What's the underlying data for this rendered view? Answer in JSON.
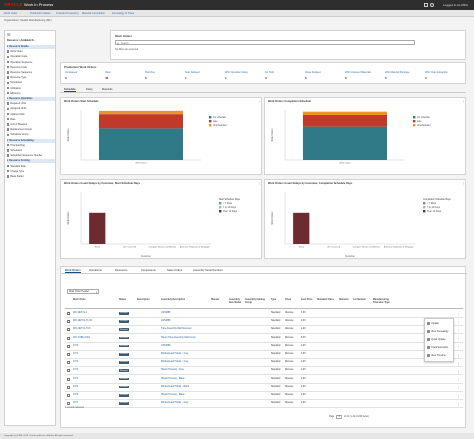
{
  "header": {
    "logo": "ORACLE",
    "product": "Work In Process",
    "user": "Logged In As MFG"
  },
  "breadcrumbs": [
    "Work Order",
    "Production Status",
    "Outside Processing",
    "Material Completion",
    "Genealogy & Trace"
  ],
  "location": "Organization: Seattle Manufacturing (M1)",
  "sidebar": {
    "title": "Resource > Available R...",
    "items": [
      {
        "label": "Resource Details",
        "header": true
      },
      {
        "label": "Work Order",
        "header": false
      },
      {
        "label": "Operation Code",
        "header": false
      },
      {
        "label": "Operation Sequence",
        "header": false
      },
      {
        "label": "Resource Code",
        "header": false
      },
      {
        "label": "Resource Sequence",
        "header": false
      },
      {
        "label": "Resource Type",
        "header": false
      },
      {
        "label": "Scheduled",
        "header": false
      },
      {
        "label": "Utilization",
        "header": false
      },
      {
        "label": "Efficiency",
        "header": false
      },
      {
        "label": "Resource Quantities",
        "header": true
      },
      {
        "label": "Required Units",
        "header": false
      },
      {
        "label": "Assigned Units",
        "header": false
      },
      {
        "label": "Applied Units",
        "header": false
      },
      {
        "label": "Rate",
        "header": false
      },
      {
        "label": "Unit of Measure",
        "header": false
      },
      {
        "label": "Replacement Group",
        "header": false
      },
      {
        "label": "Substitute Group",
        "header": false
      },
      {
        "label": "Resource Scheduling",
        "header": true
      },
      {
        "label": "Principal Flag",
        "header": false
      },
      {
        "label": "Scheduled",
        "header": false
      },
      {
        "label": "Scheduled Sequence Number",
        "header": false
      },
      {
        "label": "Resource Costing",
        "header": true
      },
      {
        "label": "Standard Rate",
        "header": false
      },
      {
        "label": "Charge Type",
        "header": false
      },
      {
        "label": "Basis Factor",
        "header": false
      }
    ]
  },
  "search": {
    "title": "Work Orders",
    "placeholder": "Search",
    "filter_text": "No filters are selected."
  },
  "kpis": {
    "title": "Production Work Orders",
    "items": [
      {
        "label": "Unreleased",
        "value": "0"
      },
      {
        "label": "Open",
        "value": "46"
      },
      {
        "label": "Past Due",
        "value": "0"
      },
      {
        "label": "Start Delayed",
        "value": "1"
      },
      {
        "label": "With Operation Delay",
        "value": "1"
      },
      {
        "label": "On Hold",
        "value": "3"
      },
      {
        "label": "Close Delayed",
        "value": "0"
      },
      {
        "label": "With Unissued Materials",
        "value": "6"
      },
      {
        "label": "With Material Shortage",
        "value": "5"
      },
      {
        "label": "With Order Exception",
        "value": "3"
      }
    ]
  },
  "subtabs": [
    "Schedule",
    "Delay",
    "Materials"
  ],
  "chart_data": [
    {
      "type": "bar",
      "title": "Work Orders Start Schedule",
      "ylabel": "Work Orders",
      "categories": [
        "Work Orders"
      ],
      "series": [
        {
          "name": "On schedule",
          "values": [
            38
          ],
          "color": "#2f7a86"
        },
        {
          "name": "Late",
          "values": [
            17
          ],
          "color": "#c0392b"
        },
        {
          "name": "Unscheduled",
          "values": [
            4
          ],
          "color": "#e8952e"
        }
      ]
    },
    {
      "type": "bar",
      "title": "Work Orders Completion Schedule",
      "ylabel": "Work Orders",
      "categories": [
        "Work Orders"
      ],
      "series": [
        {
          "name": "On schedule",
          "values": [
            40
          ],
          "color": "#2f7a86"
        },
        {
          "name": "Late",
          "values": [
            14
          ],
          "color": "#c0392b"
        },
        {
          "name": "Unscheduled",
          "values": [
            4
          ],
          "color": "#e8952e"
        }
      ]
    },
    {
      "type": "bar",
      "title": "Work Orders Count Delays by Customer, Start Schedule Days",
      "xlabel": "Customer",
      "ylabel": "Work Orders",
      "legend_title": "Start Schedule Days",
      "categories": [
        "Retail",
        "A.T. Cross Ltd",
        "Computer Service and Rentals",
        "American Telephone & Telegraph"
      ],
      "series": [
        {
          "name": "< 7 Days",
          "values": [
            0,
            0,
            0,
            0
          ],
          "color": "#6f8fa8"
        },
        {
          "name": "7 to 14 Days",
          "values": [
            0,
            0,
            0,
            0
          ],
          "color": "#b3b3b3"
        },
        {
          "name": "Over 14 Days",
          "values": [
            12,
            0,
            0,
            0
          ],
          "color": "#6d2b2f"
        }
      ]
    },
    {
      "type": "bar",
      "title": "Work Orders Count Delays by Customer, Completion Schedule Days",
      "xlabel": "Customer",
      "ylabel": "Work Orders",
      "legend_title": "Completion Schedule Days",
      "categories": [
        "Retail",
        "A.T. Cross Ltd",
        "Computer Service and Rentals",
        "American Telephone & Telegraph"
      ],
      "series": [
        {
          "name": "< 7 Days",
          "values": [
            0,
            0,
            0,
            0
          ],
          "color": "#6f8fa8"
        },
        {
          "name": "7 to 14 Days",
          "values": [
            0,
            0,
            0,
            0
          ],
          "color": "#b3b3b3"
        },
        {
          "name": "Over 14 Days",
          "values": [
            12,
            0,
            0,
            0
          ],
          "color": "#6d2b2f"
        }
      ]
    }
  ],
  "bottom_tabs": [
    "Work Orders",
    "Operations",
    "Resources",
    "Components",
    "Sales Orders",
    "Assembly Serial Numbers"
  ],
  "toolbar": {
    "view_select": "Work Order Header"
  },
  "table": {
    "columns": [
      "Work Order",
      "Status",
      "Description",
      "Assembly Description",
      "Planner",
      "Assembly Item Model",
      "Assembly Catalog Group",
      "Type",
      "Class",
      "Cost Price",
      "Standard Class",
      "Revision",
      "Lot Number",
      "Manufacturing Tolerance Type"
    ],
    "rows": [
      [
        "WO-NETC1-1",
        "Released",
        "",
        "AS54888",
        "",
        "",
        "",
        "Standard",
        "Discrete",
        "1.00",
        "",
        "",
        "",
        ""
      ],
      [
        "WO-NETC1-TLOO",
        "Released",
        "",
        "AS54888",
        "",
        "",
        "",
        "Standard",
        "Discrete",
        "2.00",
        "",
        "",
        "",
        ""
      ],
      [
        "WO-NETC1-TU8",
        "Released",
        "",
        "Tube Assembly-Wall Mounted",
        "",
        "",
        "",
        "Standard",
        "Discrete",
        "1.00",
        "",
        "",
        "",
        ""
      ],
      [
        "WO-TUBE-C001",
        "Released",
        "",
        "Mount Tube Assembly-Wall Comp",
        "",
        "",
        "",
        "Standard",
        "Discrete",
        "8.00",
        "",
        "",
        "",
        ""
      ],
      [
        "1070",
        "Released",
        "",
        "AS54888",
        "",
        "",
        "",
        "Standard",
        "Discrete",
        "2.00",
        "",
        "",
        "",
        ""
      ],
      [
        "1071",
        "Released",
        "",
        "Motherboard Holder - Gray",
        "",
        "",
        "",
        "Standard",
        "Discrete",
        "3.00",
        "",
        "",
        "",
        ""
      ],
      [
        "1072",
        "Released",
        "",
        "Motherboard Holder - Gray",
        "",
        "",
        "",
        "Standard",
        "Discrete",
        "2.00",
        "",
        "",
        "",
        ""
      ],
      [
        "1073",
        "Released",
        "",
        "Plastic Housing - Gray",
        "",
        "",
        "",
        "Standard",
        "Discrete",
        "2.00",
        "",
        "",
        "",
        ""
      ],
      [
        "1074",
        "Released",
        "",
        "Plastic Housing - Black",
        "",
        "",
        "",
        "Standard",
        "Discrete",
        "2.00",
        "",
        "",
        "",
        ""
      ],
      [
        "1075",
        "Released",
        "",
        "Motherboard Holder - Black",
        "",
        "",
        "",
        "Standard",
        "Discrete",
        "2.00",
        "",
        "",
        "",
        ""
      ],
      [
        "1076",
        "Released",
        "",
        "Plastic Housing - Black",
        "",
        "",
        "",
        "Standard",
        "Discrete",
        "2.00",
        "",
        "",
        "",
        ""
      ],
      [
        "1077",
        "Released",
        "",
        "Motherboard Holder - Gray",
        "",
        "",
        "",
        "Standard",
        "Discrete",
        "2.00",
        "",
        "",
        "",
        ""
      ]
    ],
    "selection_info": "0 records selected"
  },
  "context_menu": [
    "Update",
    "View Genealogy",
    "Quick Update",
    "Track Execution",
    "View Timeline"
  ],
  "pagination": {
    "label": "Page",
    "current": "1",
    "of_text": "of 21  (1-12 of 246 items)"
  },
  "footer": "Copyright (c) 1998, 2019, Oracle and/or its affiliates. All rights reserved."
}
